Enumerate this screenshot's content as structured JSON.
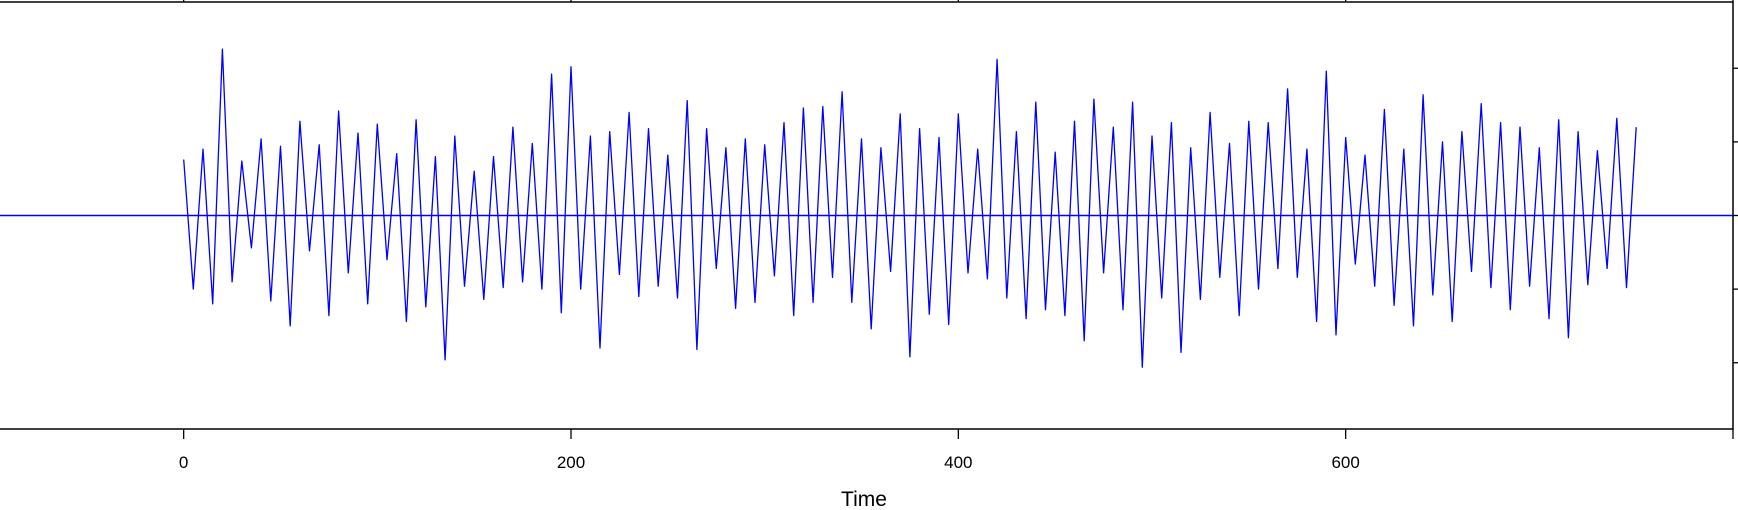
{
  "chart_data": {
    "type": "line",
    "title": "",
    "xlabel": "Time",
    "ylabel": "",
    "xlim": [
      -100,
      800
    ],
    "ylim": [
      -1.45,
      1.45
    ],
    "x_ticks": [
      0,
      200,
      400,
      600
    ],
    "x_tick_labels": [
      "0",
      "200",
      "400",
      "600"
    ],
    "reference_line": {
      "y": 0,
      "color": "#0000FF"
    },
    "grid": false,
    "legend": "none",
    "colors": {
      "series": "#0000FF",
      "axis": "#000000",
      "background": "#FFFFFF"
    },
    "series": [
      {
        "x_start": 0,
        "x_step": 5,
        "values": [
          0.38,
          -0.5,
          0.45,
          -0.6,
          1.13,
          -0.45,
          0.37,
          -0.22,
          0.52,
          -0.58,
          0.47,
          -0.75,
          0.64,
          -0.24,
          0.48,
          -0.68,
          0.71,
          -0.39,
          0.56,
          -0.6,
          0.62,
          -0.3,
          0.42,
          -0.72,
          0.65,
          -0.62,
          0.4,
          -0.98,
          0.54,
          -0.48,
          0.3,
          -0.57,
          0.4,
          -0.49,
          0.6,
          -0.45,
          0.49,
          -0.5,
          0.96,
          -0.66,
          1.01,
          -0.5,
          0.54,
          -0.9,
          0.57,
          -0.4,
          0.7,
          -0.55,
          0.59,
          -0.48,
          0.41,
          -0.56,
          0.78,
          -0.91,
          0.59,
          -0.36,
          0.46,
          -0.63,
          0.52,
          -0.59,
          0.48,
          -0.41,
          0.63,
          -0.68,
          0.73,
          -0.59,
          0.74,
          -0.42,
          0.84,
          -0.59,
          0.52,
          -0.77,
          0.46,
          -0.38,
          0.69,
          -0.96,
          0.59,
          -0.67,
          0.53,
          -0.74,
          0.69,
          -0.39,
          0.45,
          -0.43,
          1.06,
          -0.56,
          0.57,
          -0.7,
          0.77,
          -0.64,
          0.43,
          -0.68,
          0.64,
          -0.85,
          0.79,
          -0.39,
          0.6,
          -0.64,
          0.77,
          -1.03
        ],
        "x_end": 495
      },
      {
        "x_start": 500,
        "x_step": 5,
        "values": [
          0.54,
          -0.56,
          0.63,
          -0.93,
          0.46,
          -0.57,
          0.7,
          -0.42,
          0.49,
          -0.68,
          0.64,
          -0.5,
          0.63,
          -0.36,
          0.86,
          -0.42,
          0.45,
          -0.72,
          0.98,
          -0.81,
          0.53,
          -0.33,
          0.41,
          -0.48,
          0.72,
          -0.61,
          0.45,
          -0.75,
          0.82,
          -0.54,
          0.5,
          -0.72,
          0.57,
          -0.38,
          0.76,
          -0.49,
          0.63,
          -0.64,
          0.6,
          -0.48,
          0.46,
          -0.7,
          0.65,
          -0.83,
          0.57,
          -0.47,
          0.44,
          -0.36,
          0.66,
          -0.49,
          0.6
        ]
      }
    ]
  }
}
